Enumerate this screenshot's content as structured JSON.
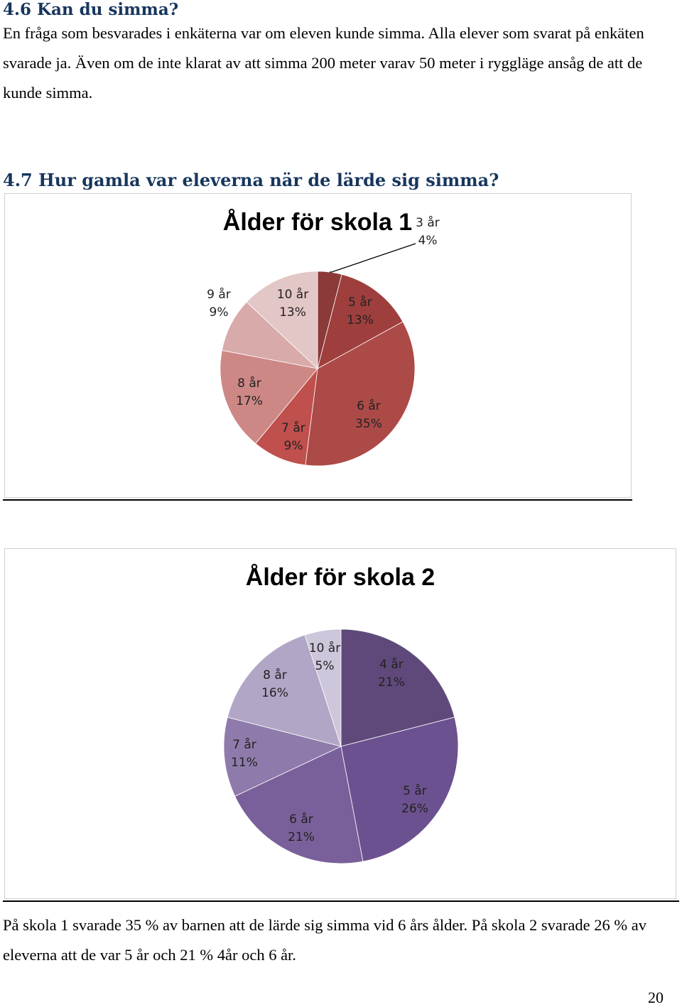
{
  "section_46": {
    "heading": "4.6 Kan du simma?",
    "text": "En fråga som besvarades i enkäterna var om eleven kunde simma. Alla elever som svarat på enkäten svarade ja. Även om de inte klarat av att simma 200 meter varav 50 meter i ryggläge ansåg de att de kunde simma."
  },
  "section_47": {
    "heading": "4.7 Hur gamla var eleverna när de lärde sig simma?"
  },
  "chart_data": [
    {
      "type": "pie",
      "title": "Ålder för skola 1",
      "categories": [
        "3 år",
        "5 år",
        "6 år",
        "7 år",
        "8 år",
        "9 år",
        "10 år"
      ],
      "values": [
        4,
        13,
        35,
        9,
        17,
        9,
        13
      ],
      "labels": [
        "4%",
        "13%",
        "35%",
        "9%",
        "17%",
        "9%",
        "13%"
      ],
      "colors": [
        "#8b3a39",
        "#9e3f3d",
        "#ac4a48",
        "#c0504d",
        "#cd8886",
        "#d8aaa9",
        "#e3c6c6"
      ],
      "legend": "none"
    },
    {
      "type": "pie",
      "title": "Ålder för skola 2",
      "categories": [
        "4 år",
        "5 år",
        "6 år",
        "7 år",
        "8 år",
        "10 år"
      ],
      "values": [
        21,
        26,
        21,
        11,
        16,
        5
      ],
      "labels": [
        "21%",
        "26%",
        "21%",
        "11%",
        "16%",
        "5%"
      ],
      "colors": [
        "#5f497a",
        "#6c5190",
        "#7a609a",
        "#8f7bab",
        "#b2a6c6",
        "#cec6db"
      ],
      "legend": "none"
    }
  ],
  "summary": {
    "text": "På skola 1 svarade 35 % av barnen att de lärde sig simma vid 6 års ålder. På skola 2 svarade 26 % av eleverna att de var 5 år och 21 % 4år och 6 år."
  },
  "page_number": "20"
}
